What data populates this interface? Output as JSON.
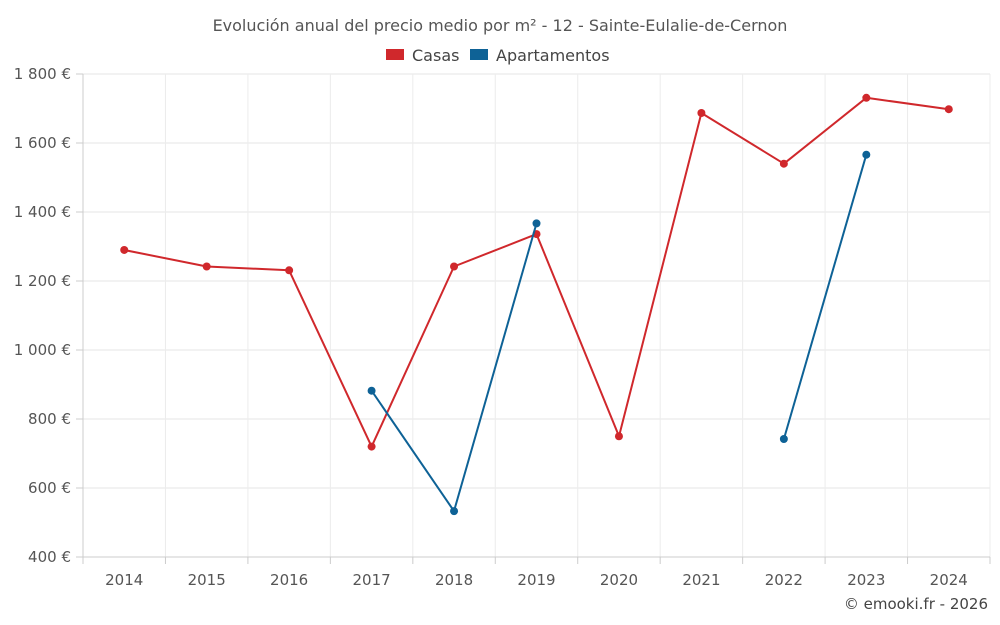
{
  "chart_data": {
    "type": "line",
    "title": "Evolución anual del precio medio por m² - 12 - Sainte-Eulalie-de-Cernon",
    "categories": [
      "2014",
      "2015",
      "2016",
      "2017",
      "2018",
      "2019",
      "2020",
      "2021",
      "2022",
      "2023",
      "2024"
    ],
    "series": [
      {
        "name": "Casas",
        "color": "#d0282c",
        "values": [
          1290,
          1242,
          1231,
          720,
          1242,
          1336,
          750,
          1687,
          1540,
          1731,
          1698
        ]
      },
      {
        "name": "Apartamentos",
        "color": "#0e6296",
        "values": [
          null,
          null,
          null,
          882,
          533,
          1367,
          null,
          null,
          742,
          1566,
          null
        ]
      }
    ],
    "ylim": [
      400,
      1800
    ],
    "yticks": [
      400,
      600,
      800,
      1000,
      1200,
      1400,
      1600,
      1800
    ],
    "ytick_labels": [
      "400 €",
      "600 €",
      "800 €",
      "1 000 €",
      "1 200 €",
      "1 400 €",
      "1 600 €",
      "1 800 €"
    ],
    "grid": true,
    "legend_position": "top-center"
  },
  "credit": "© emooki.fr - 2026"
}
